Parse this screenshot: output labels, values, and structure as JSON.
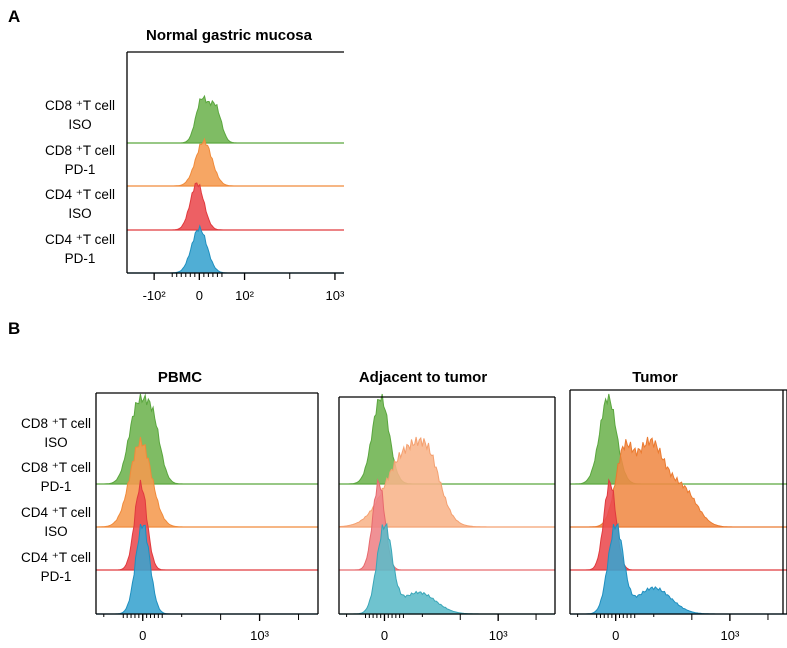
{
  "chart_data": [
    {
      "type": "histogram-overlay",
      "panel": "A",
      "title": "Normal gastric mucosa",
      "x_ticks": [
        "-10²",
        "0",
        "10²",
        "10³"
      ],
      "rows": [
        {
          "label_line1": "CD8 ⁺T cell",
          "label_line2": "ISO",
          "color": "#5aa63e",
          "fill": "#6db34e",
          "peaks": [
            {
              "mu": 0.05,
              "sd": 0.13,
              "amp": 0.7
            },
            {
              "mu": 0.35,
              "sd": 0.13,
              "amp": 0.6
            }
          ]
        },
        {
          "label_line1": "CD8 ⁺T cell",
          "label_line2": "PD-1",
          "color": "#f08a3a",
          "fill": "#f59a4f",
          "peaks": [
            {
              "mu": 0.1,
              "sd": 0.18,
              "amp": 1.0
            }
          ]
        },
        {
          "label_line1": "CD4 ⁺T cell",
          "label_line2": "ISO",
          "color": "#e03a3e",
          "fill": "#ea4a4e",
          "peaks": [
            {
              "mu": -0.05,
              "sd": 0.15,
              "amp": 1.0
            }
          ]
        },
        {
          "label_line1": "CD4 ⁺T cell",
          "label_line2": "PD-1",
          "color": "#1f8fbf",
          "fill": "#38a3cf",
          "peaks": [
            {
              "mu": 0.0,
              "sd": 0.17,
              "amp": 1.0
            }
          ]
        }
      ]
    },
    {
      "type": "histogram-overlay",
      "panel": "B",
      "title": "PBMC",
      "x_ticks": [
        "0",
        "10³"
      ],
      "rows": [
        {
          "label_line1": "CD8 ⁺T cell",
          "label_line2": "ISO",
          "color": "#5aa63e",
          "fill": "#6db34e",
          "peaks": [
            {
              "mu": -0.15,
              "sd": 0.22,
              "amp": 0.95
            },
            {
              "mu": 0.25,
              "sd": 0.2,
              "amp": 0.8
            }
          ]
        },
        {
          "label_line1": "CD8 ⁺T cell",
          "label_line2": "PD-1",
          "color": "#f08a3a",
          "fill": "#f59a4f",
          "peaks": [
            {
              "mu": -0.05,
              "sd": 0.28,
              "amp": 1.0
            }
          ]
        },
        {
          "label_line1": "CD4 ⁺T cell",
          "label_line2": "ISO",
          "color": "#e03a3e",
          "fill": "#ea4a4e",
          "peaks": [
            {
              "mu": -0.05,
              "sd": 0.16,
              "amp": 1.0
            }
          ]
        },
        {
          "label_line1": "CD4 ⁺T cell",
          "label_line2": "PD-1",
          "color": "#1f8fbf",
          "fill": "#38a3cf",
          "peaks": [
            {
              "mu": 0.0,
              "sd": 0.18,
              "amp": 1.0
            }
          ]
        }
      ]
    },
    {
      "type": "histogram-overlay",
      "panel": "B",
      "title": "Adjacent to tumor",
      "x_ticks": [
        "0",
        "10³"
      ],
      "rows": [
        {
          "color": "#5aa63e",
          "fill": "#6db34e",
          "peaks": [
            {
              "mu": -0.1,
              "sd": 0.22,
              "amp": 1.0
            }
          ]
        },
        {
          "color": "#f4a070",
          "fill": "#f8b48a",
          "peaks": [
            {
              "mu": 0.6,
              "sd": 0.55,
              "amp": 0.75
            },
            {
              "mu": 1.2,
              "sd": 0.3,
              "amp": 0.35
            }
          ]
        },
        {
          "color": "#e76a6e",
          "fill": "#ee8286",
          "peaks": [
            {
              "mu": -0.15,
              "sd": 0.16,
              "amp": 1.0
            }
          ]
        },
        {
          "color": "#3aa6b8",
          "fill": "#5bbbc8",
          "peaks": [
            {
              "mu": 0.0,
              "sd": 0.2,
              "amp": 1.0
            },
            {
              "mu": 0.9,
              "sd": 0.45,
              "amp": 0.25
            }
          ]
        }
      ]
    },
    {
      "type": "histogram-overlay",
      "panel": "B",
      "title": "Tumor",
      "x_ticks": [
        "0",
        "10³"
      ],
      "rows": [
        {
          "color": "#5aa63e",
          "fill": "#6db34e",
          "peaks": [
            {
              "mu": -0.2,
              "sd": 0.22,
              "amp": 1.0
            }
          ]
        },
        {
          "color": "#ea7a30",
          "fill": "#f08a45",
          "peaks": [
            {
              "mu": 0.2,
              "sd": 0.22,
              "amp": 0.55
            },
            {
              "mu": 0.9,
              "sd": 0.4,
              "amp": 0.75
            },
            {
              "mu": 1.8,
              "sd": 0.35,
              "amp": 0.3
            }
          ]
        },
        {
          "color": "#e03a3e",
          "fill": "#ea4a4e",
          "peaks": [
            {
              "mu": -0.15,
              "sd": 0.16,
              "amp": 1.0
            }
          ]
        },
        {
          "color": "#1f8fbf",
          "fill": "#38a3cf",
          "peaks": [
            {
              "mu": 0.0,
              "sd": 0.2,
              "amp": 1.0
            },
            {
              "mu": 1.0,
              "sd": 0.45,
              "amp": 0.3
            }
          ]
        }
      ]
    }
  ],
  "panel_labels": {
    "a": "A",
    "b": "B"
  }
}
